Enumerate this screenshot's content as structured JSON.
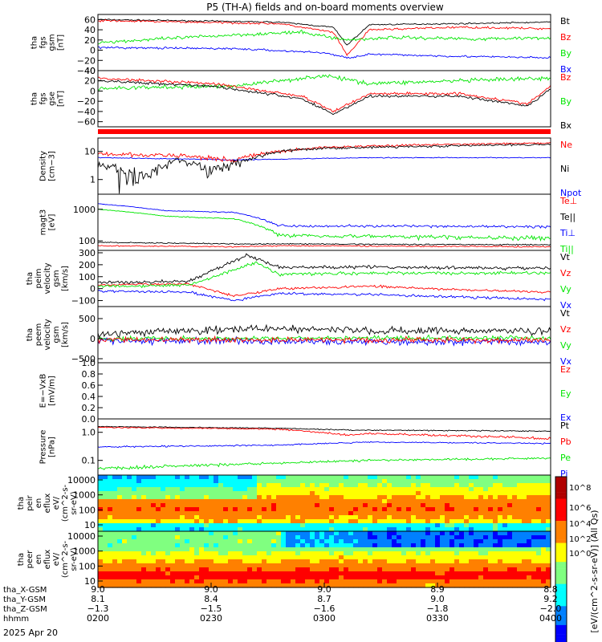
{
  "title": "P5 (TH-A) fields and on-board moments overview",
  "date_label": "2025 Apr 20",
  "colors": {
    "black": "#000000",
    "red": "#ff0000",
    "green": "#00e600",
    "blue": "#0000ff"
  },
  "chart_data": [
    {
      "type": "line",
      "name": "fgs_gsm",
      "ylabel": [
        "tha",
        "fgs",
        "gsm",
        "[nT]"
      ],
      "yticks": [
        "60",
        "40",
        "20",
        "0",
        "−20",
        "−40"
      ],
      "ylim": [
        -40,
        70
      ],
      "legend": [
        {
          "label": "Bt",
          "color": "black"
        },
        {
          "label": "Bz",
          "color": "red"
        },
        {
          "label": "By",
          "color": "green"
        },
        {
          "label": "Bx",
          "color": "blue"
        }
      ]
    },
    {
      "type": "line",
      "name": "fgs_gse",
      "ylabel": [
        "tha",
        "fgs",
        "gse",
        "[nT]"
      ],
      "yticks": [
        "40",
        "20",
        "0",
        "−20",
        "−40",
        "−60"
      ],
      "ylim": [
        -70,
        40
      ],
      "legend": [
        {
          "label": "Bz",
          "color": "red"
        },
        {
          "label": "By",
          "color": "green"
        },
        {
          "label": "Bx",
          "color": "black"
        }
      ]
    },
    {
      "type": "line",
      "name": "density",
      "scale": "log",
      "ylabel": [
        "Density",
        "[cm−3]"
      ],
      "yticks": [
        "10",
        "1"
      ],
      "ylim": [
        0.3,
        30
      ],
      "legend": [
        {
          "label": "Ne",
          "color": "red"
        },
        {
          "label": "Ni",
          "color": "black"
        },
        {
          "label": "Npot",
          "color": "blue"
        }
      ]
    },
    {
      "type": "line",
      "name": "temperature",
      "scale": "log",
      "ylabel": [
        "magt3",
        "[eV]"
      ],
      "yticks": [
        "1000",
        "100"
      ],
      "ylim": [
        50,
        3000
      ],
      "legend": [
        {
          "label": "Te⊥",
          "color": "red"
        },
        {
          "label": "Te||",
          "color": "black"
        },
        {
          "label": "Ti⊥",
          "color": "blue"
        },
        {
          "label": "Ti||",
          "color": "green"
        }
      ]
    },
    {
      "type": "line",
      "name": "peim_velocity",
      "ylabel": [
        "tha",
        "peim",
        "velocity",
        "gsm",
        "[km/s]"
      ],
      "yticks": [
        "300",
        "200",
        "100",
        "0",
        "−100"
      ],
      "ylim": [
        -150,
        320
      ],
      "legend": [
        {
          "label": "Vt",
          "color": "black"
        },
        {
          "label": "Vz",
          "color": "red"
        },
        {
          "label": "Vy",
          "color": "green"
        },
        {
          "label": "Vx",
          "color": "blue"
        }
      ]
    },
    {
      "type": "line",
      "name": "peem_velocity",
      "ylabel": [
        "tha",
        "peem",
        "velocity",
        "gsm",
        "[km/s]"
      ],
      "yticks": [
        "500",
        "0",
        "−500"
      ],
      "ylim": [
        -600,
        800
      ],
      "legend": [
        {
          "label": "Vt",
          "color": "black"
        },
        {
          "label": "Vz",
          "color": "red"
        },
        {
          "label": "Vy",
          "color": "green"
        },
        {
          "label": "Vx",
          "color": "blue"
        }
      ]
    },
    {
      "type": "line",
      "name": "efield",
      "ylabel": [
        "E=−VxB",
        "[mV/m]"
      ],
      "yticks": [
        "1.0",
        "0.8",
        "0.6",
        "0.4",
        "0.2",
        "0.0"
      ],
      "ylim": [
        0,
        1
      ],
      "legend": [
        {
          "label": "Ez",
          "color": "red"
        },
        {
          "label": "Ey",
          "color": "green"
        },
        {
          "label": "Ex",
          "color": "blue"
        }
      ]
    },
    {
      "type": "line",
      "name": "pressure",
      "scale": "log",
      "ylabel": [
        "Pressure",
        "[nPa]"
      ],
      "yticks": [
        "1.0",
        "0.1"
      ],
      "ylim": [
        0.03,
        3
      ],
      "legend": [
        {
          "label": "Pt",
          "color": "black"
        },
        {
          "label": "Pb",
          "color": "red"
        },
        {
          "label": "Pe",
          "color": "green"
        },
        {
          "label": "Pi",
          "color": "blue"
        }
      ]
    },
    {
      "type": "heatmap",
      "name": "peir_spectrogram",
      "ylabel": [
        "tha",
        "peir",
        "en",
        "eflux",
        "eV/",
        "(cm^2-s-",
        "sr-eV)"
      ],
      "yticks": [
        "10000",
        "1000",
        "100",
        "10"
      ]
    },
    {
      "type": "heatmap",
      "name": "peer_spectrogram",
      "ylabel": [
        "tha",
        "peer",
        "en",
        "eflux",
        "eV/",
        "(cm^2-s-",
        "sr-eV)"
      ],
      "yticks": [
        "10000",
        "1000",
        "100",
        "10"
      ]
    }
  ],
  "colorbar": {
    "label": "[eV/(cm^2-s-sr-eV)] (All Qs)",
    "ticks": [
      "10^8",
      "10^6",
      "10^4",
      "10^2",
      "10^0"
    ]
  },
  "xaxis": {
    "row_labels": [
      "tha_X-GSM",
      "tha_Y-GSM",
      "tha_Z-GSM",
      "hhmm"
    ],
    "columns": [
      {
        "x": "9.0",
        "y": "8.1",
        "z": "−1.3",
        "t": "0200"
      },
      {
        "x": "9.0",
        "y": "8.4",
        "z": "−1.5",
        "t": "0230"
      },
      {
        "x": "9.0",
        "y": "8.7",
        "z": "−1.6",
        "t": "0300"
      },
      {
        "x": "8.9",
        "y": "9.0",
        "z": "−1.8",
        "t": "0330"
      },
      {
        "x": "8.8",
        "y": "9.2",
        "z": "−2.0",
        "t": "0400"
      }
    ]
  }
}
